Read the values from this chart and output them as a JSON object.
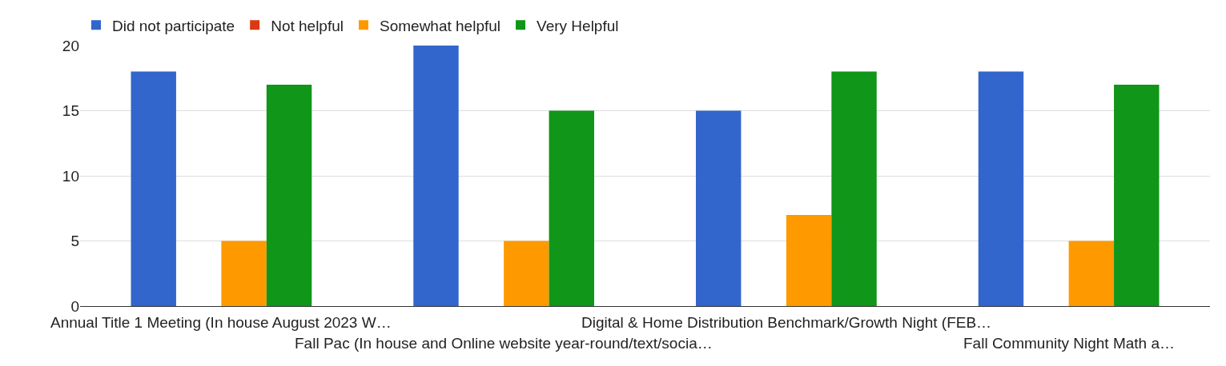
{
  "chart_data": {
    "type": "bar",
    "categories": [
      "Annual Title 1 Meeting (In house August 2023 W…",
      "Fall Pac (In house and Online website year-round/text/socia…",
      "Digital & Home Distribution Benchmark/Growth Night (FEB…",
      "Fall Community Night Math a…"
    ],
    "series": [
      {
        "name": "Did not participate",
        "color": "#3366cc",
        "values": [
          18,
          20,
          15,
          18
        ]
      },
      {
        "name": "Not helpful",
        "color": "#dc3912",
        "values": [
          0,
          0,
          0,
          0
        ]
      },
      {
        "name": "Somewhat helpful",
        "color": "#ff9900",
        "values": [
          5,
          5,
          7,
          5
        ]
      },
      {
        "name": "Very Helpful",
        "color": "#109618",
        "values": [
          17,
          15,
          18,
          17
        ]
      }
    ],
    "ylim": [
      0,
      20
    ],
    "yticks": [
      0,
      5,
      10,
      15,
      20
    ],
    "grid": "y",
    "legend": "top left"
  }
}
